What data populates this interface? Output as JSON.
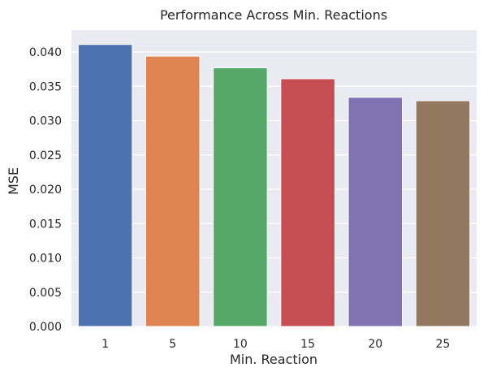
{
  "chart_data": {
    "type": "bar",
    "title": "Performance Across Min. Reactions",
    "xlabel": "Min. Reaction",
    "ylabel": "MSE",
    "categories": [
      "1",
      "5",
      "10",
      "15",
      "20",
      "25"
    ],
    "values": [
      0.0411,
      0.0394,
      0.0377,
      0.0361,
      0.0334,
      0.0329
    ],
    "ylim": [
      0,
      0.0432
    ],
    "yticks": [
      "0.000",
      "0.005",
      "0.010",
      "0.015",
      "0.020",
      "0.025",
      "0.030",
      "0.035",
      "0.040"
    ],
    "grid": true,
    "legend": "none",
    "background_color": "#eaeaf2",
    "grid_color": "#ffffff",
    "bar_colors": [
      "#4c72b0",
      "#dd8452",
      "#55a868",
      "#c44e52",
      "#8172b3",
      "#937860"
    ]
  }
}
